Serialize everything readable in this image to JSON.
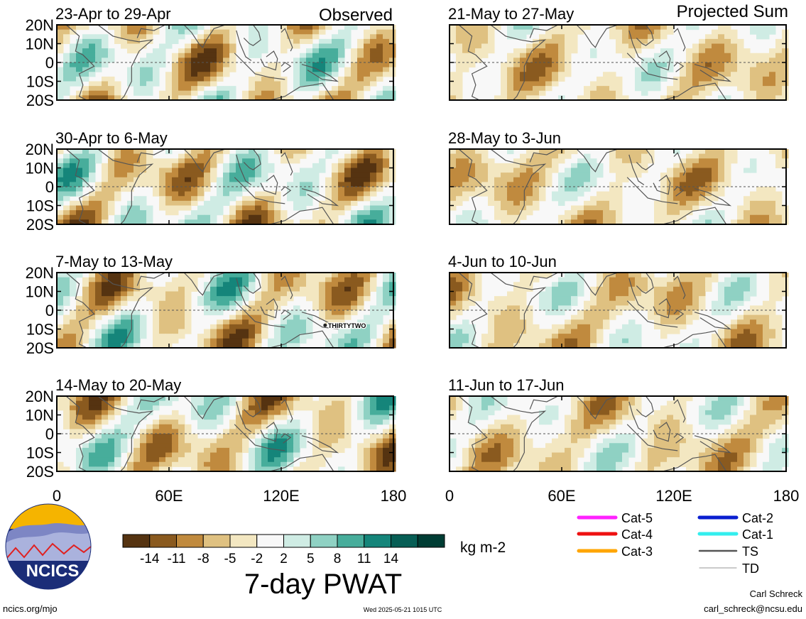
{
  "chart_data": {
    "type": "heatmap",
    "variable_title": "7-day PWAT",
    "units": "kg m-2",
    "x_ticks": [
      "0",
      "60E",
      "120E",
      "180"
    ],
    "y_ticks": [
      "20N",
      "10N",
      "0",
      "10S",
      "20S"
    ],
    "xlim": [
      0,
      180
    ],
    "ylim": [
      -20,
      20
    ],
    "columns": [
      {
        "header": "Observed",
        "panels": [
          {
            "title": "23-Apr to 29-Apr"
          },
          {
            "title": "30-Apr to 6-May"
          },
          {
            "title": "7-May to 13-May",
            "annotation": "THIRTYTWO",
            "annotation_lon": 145,
            "annotation_lat": -8
          },
          {
            "title": "14-May to 20-May"
          }
        ]
      },
      {
        "header": "Projected Sum",
        "panels": [
          {
            "title": "21-May to 27-May"
          },
          {
            "title": "28-May to 3-Jun"
          },
          {
            "title": "4-Jun to 10-Jun"
          },
          {
            "title": "11-Jun to 17-Jun"
          }
        ]
      }
    ],
    "colorbar": {
      "labels": [
        "-14",
        "-11",
        "-8",
        "-5",
        "-2",
        "2",
        "5",
        "8",
        "11",
        "14"
      ],
      "colors": [
        "#553311",
        "#8a5a1f",
        "#c08a3e",
        "#dfc181",
        "#f3e7c1",
        "#f8f8f8",
        "#cfece4",
        "#8fd1c3",
        "#47ad9b",
        "#15857a",
        "#075e55",
        "#003d34"
      ]
    }
  },
  "legend": [
    {
      "label": "Cat-5",
      "color": "#ff22ff"
    },
    {
      "label": "Cat-4",
      "color": "#ee1111"
    },
    {
      "label": "Cat-3",
      "color": "#ffa500"
    },
    {
      "label": "Cat-2",
      "color": "#0a1fd0"
    },
    {
      "label": "Cat-1",
      "color": "#33eeee"
    },
    {
      "label": "TS",
      "color": "#555555"
    },
    {
      "label": "TD",
      "color": "#aaaaaa"
    }
  ],
  "logo_text": "NCICS",
  "footer": {
    "left": "ncics.org/mjo",
    "center": "Wed 2025-05-21 1015 UTC",
    "author": "Carl Schreck",
    "email": "carl_schreck@ncsu.edu"
  }
}
